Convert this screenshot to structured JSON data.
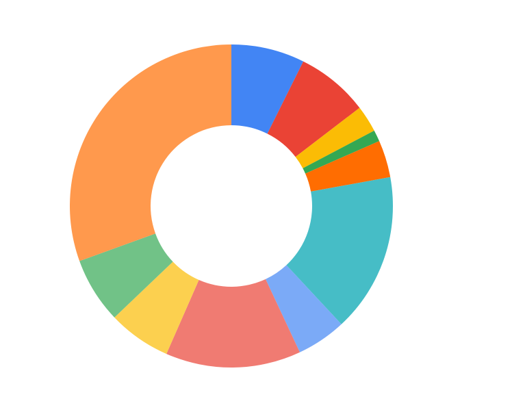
{
  "chart_data": {
    "type": "pie",
    "variant": "donut",
    "title": "",
    "legend": "none",
    "start_angle_deg": 0,
    "direction": "clockwise",
    "slices": [
      {
        "value": 7.7,
        "color": "#4285f4"
      },
      {
        "value": 7.6,
        "color": "#ea4335"
      },
      {
        "value": 2.8,
        "color": "#fbbc05"
      },
      {
        "value": 1.2,
        "color": "#34a853"
      },
      {
        "value": 3.9,
        "color": "#ff6d01"
      },
      {
        "value": 16.7,
        "color": "#46bdc6"
      },
      {
        "value": 5.2,
        "color": "#7baaf7"
      },
      {
        "value": 14.2,
        "color": "#f07b72"
      },
      {
        "value": 6.6,
        "color": "#fcd04f"
      },
      {
        "value": 6.9,
        "color": "#71c287"
      },
      {
        "value": 32.0,
        "color": "#ff994d"
      }
    ]
  }
}
